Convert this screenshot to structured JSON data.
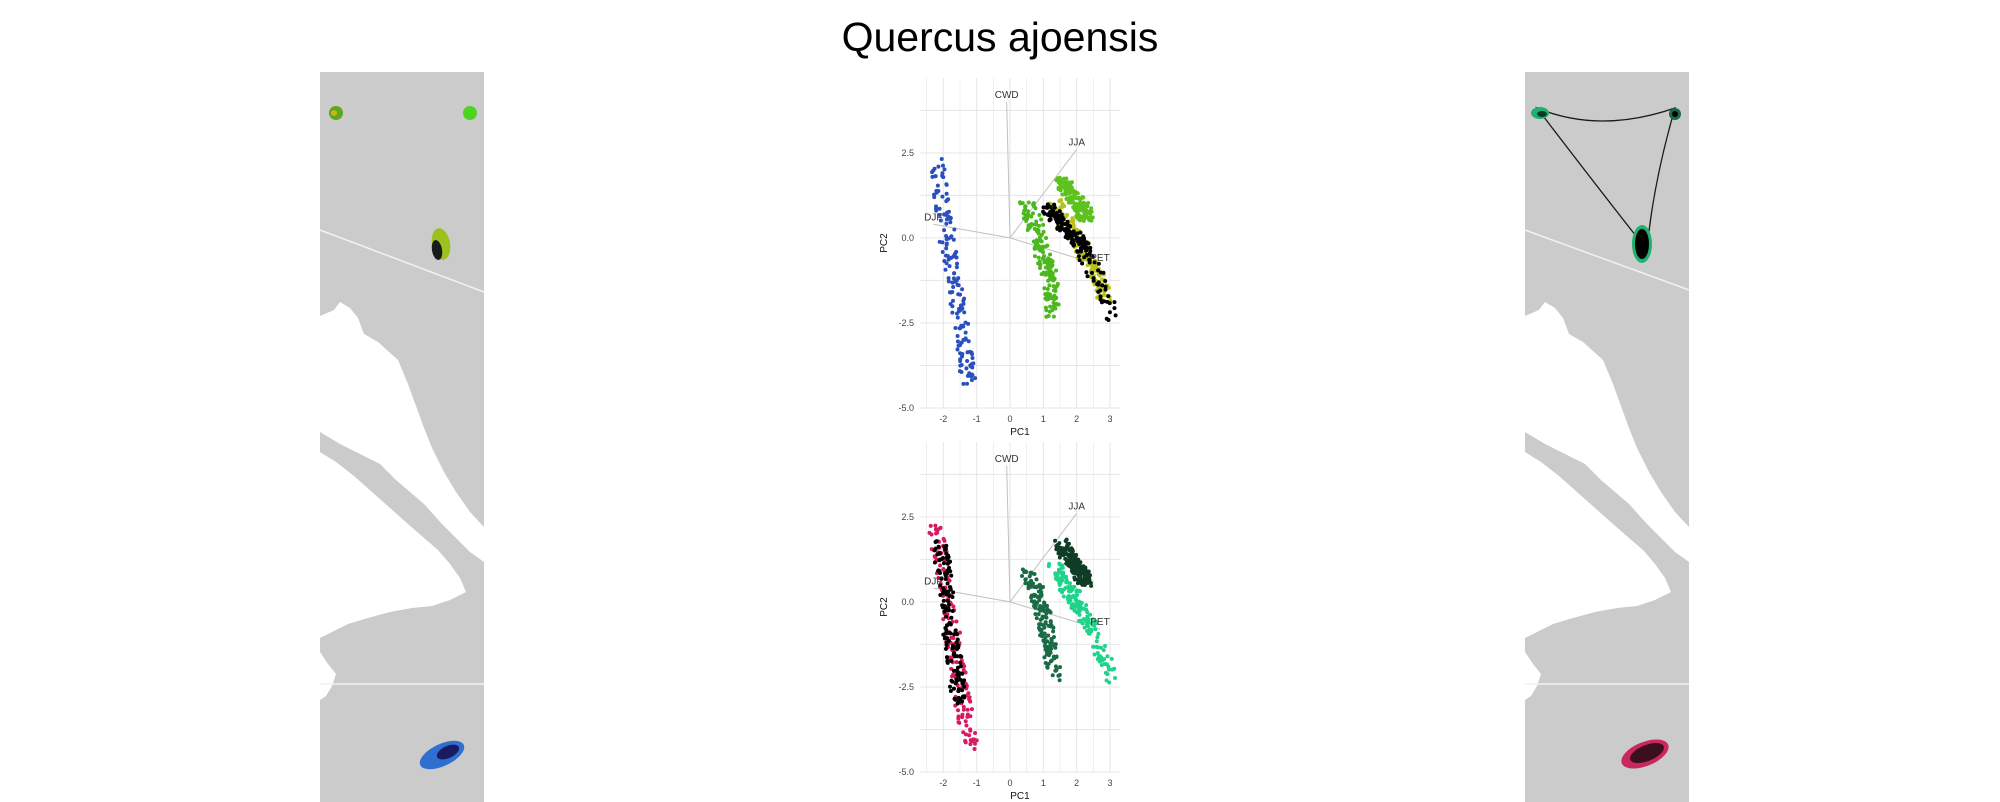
{
  "title": "Quercus ajoensis",
  "colors": {
    "map_land": "#cbcbcb",
    "map_water": "#ffffff",
    "border_line": "#f0f0f0",
    "panel_grid": "#e6e6e6",
    "biplot_arrow": "#c0c0c0",
    "hull_line": "#000000"
  },
  "chart_data": [
    {
      "type": "scatter",
      "title": "",
      "xlabel": "PC1",
      "ylabel": "PC2",
      "xlim": [
        -2.7,
        3.3
      ],
      "ylim": [
        -5.0,
        4.7
      ],
      "xticks": [
        "-2",
        "-1",
        "0",
        "1",
        "2",
        "3"
      ],
      "yticks": [
        "2.5",
        "0.0",
        "-2.5",
        "-5.0"
      ],
      "grid": true,
      "legend": "none",
      "palette": "blue-purple / green-yellow / black",
      "biplot_arrows": [
        {
          "label": "CWD",
          "x": -0.1,
          "y": 4.0
        },
        {
          "label": "JJA",
          "x": 2.0,
          "y": 2.6
        },
        {
          "label": "DJF",
          "x": -2.3,
          "y": 0.4
        },
        {
          "label": "PET",
          "x": 2.7,
          "y": -0.8
        }
      ],
      "series": [
        {
          "color": "#2a4fbf",
          "x": [
            -2.2,
            -2.0,
            -1.8,
            -1.6,
            -1.4,
            -1.2
          ],
          "y": [
            2.2,
            0.8,
            -0.5,
            -1.8,
            -3.0,
            -4.3
          ]
        },
        {
          "color": "#4cb81e",
          "x": [
            0.5,
            0.8,
            1.0,
            1.2,
            1.3
          ],
          "y": [
            1.0,
            0.2,
            -0.5,
            -1.2,
            -2.2
          ]
        },
        {
          "color": "#b8c21e",
          "x": [
            1.3,
            1.7,
            2.1,
            2.5,
            2.9
          ],
          "y": [
            1.0,
            0.5,
            -0.2,
            -0.9,
            -1.8
          ]
        },
        {
          "color": "#5ec21e",
          "x": [
            1.5,
            1.8,
            2.1,
            2.3
          ],
          "y": [
            1.7,
            1.3,
            0.9,
            0.6
          ]
        },
        {
          "color": "#000000",
          "x": [
            1.1,
            1.5,
            1.9,
            2.3,
            3.1
          ],
          "y": [
            0.9,
            0.5,
            0.1,
            -0.5,
            -2.3
          ]
        }
      ]
    },
    {
      "type": "scatter",
      "title": "",
      "xlabel": "PC1",
      "ylabel": "PC2",
      "xlim": [
        -2.7,
        3.3
      ],
      "ylim": [
        -5.0,
        4.7
      ],
      "xticks": [
        "-2",
        "-1",
        "0",
        "1",
        "2",
        "3"
      ],
      "yticks": [
        "2.5",
        "0.0",
        "-2.5",
        "-5.0"
      ],
      "grid": true,
      "legend": "none",
      "palette": "pink / green / black",
      "biplot_arrows": [
        {
          "label": "CWD",
          "x": -0.1,
          "y": 4.0
        },
        {
          "label": "JJA",
          "x": 2.0,
          "y": 2.6
        },
        {
          "label": "DJF",
          "x": -2.3,
          "y": 0.4
        },
        {
          "label": "PET",
          "x": 2.7,
          "y": -0.8
        }
      ],
      "series": [
        {
          "color": "#d81b60",
          "x": [
            -2.2,
            -2.0,
            -1.8,
            -1.6,
            -1.4,
            -1.2
          ],
          "y": [
            2.2,
            0.8,
            -0.5,
            -1.8,
            -3.0,
            -4.3
          ]
        },
        {
          "color": "#1a6b45",
          "x": [
            0.5,
            0.8,
            1.0,
            1.2,
            1.3
          ],
          "y": [
            1.0,
            0.2,
            -0.5,
            -1.2,
            -2.2
          ]
        },
        {
          "color": "#1fd48a",
          "x": [
            1.3,
            1.7,
            2.1,
            2.5,
            3.1
          ],
          "y": [
            1.0,
            0.5,
            -0.2,
            -0.9,
            -2.3
          ]
        },
        {
          "color": "#0f3d26",
          "x": [
            1.5,
            1.8,
            2.1,
            2.3
          ],
          "y": [
            1.7,
            1.3,
            0.9,
            0.6
          ]
        },
        {
          "color": "#000000",
          "x": [
            -2.1,
            -1.9,
            -1.7,
            -1.5
          ],
          "y": [
            1.8,
            0.3,
            -1.5,
            -3.0
          ]
        }
      ]
    }
  ]
}
